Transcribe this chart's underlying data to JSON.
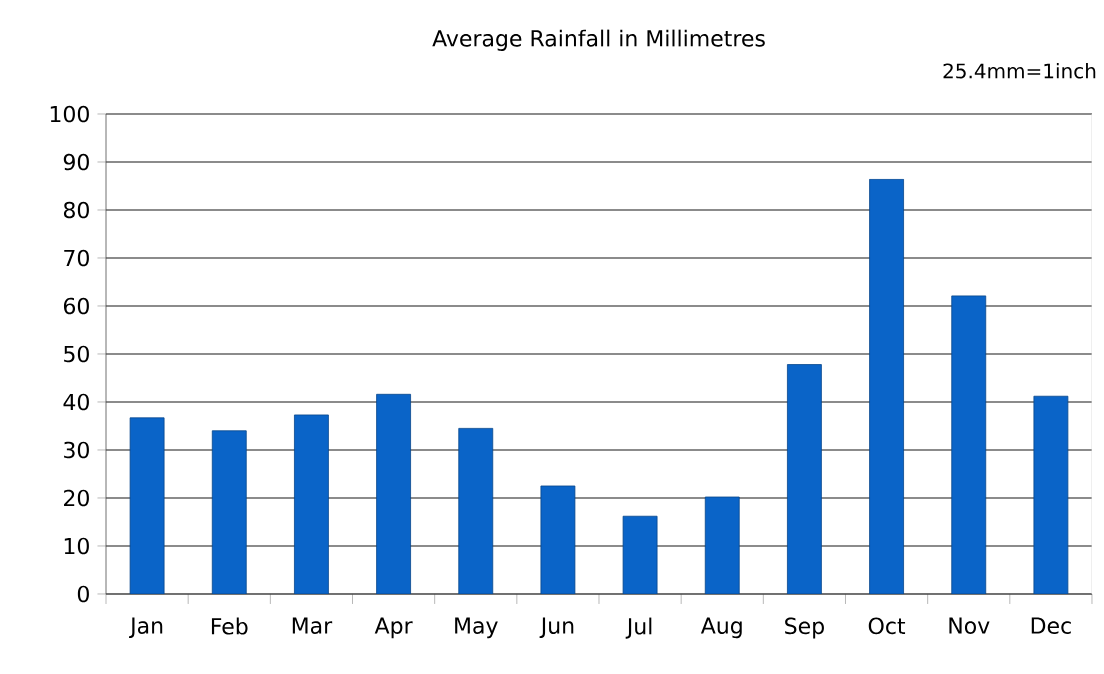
{
  "chart_data": {
    "type": "bar",
    "title": "Average Rainfall in Millimetres",
    "annotations": [
      "25.4mm=1inch"
    ],
    "categories": [
      "Jan",
      "Feb",
      "Mar",
      "Apr",
      "May",
      "Jun",
      "Jul",
      "Aug",
      "Sep",
      "Oct",
      "Nov",
      "Dec"
    ],
    "values": [
      36.7,
      34,
      37.3,
      41.6,
      34.5,
      22.5,
      16.2,
      20.2,
      47.8,
      86.4,
      62.1,
      41.2
    ],
    "color": "#0a64c8",
    "ylim": [
      0,
      100
    ],
    "yticks": [
      0,
      10,
      20,
      30,
      40,
      50,
      60,
      70,
      80,
      90,
      100
    ],
    "grid": "y"
  }
}
